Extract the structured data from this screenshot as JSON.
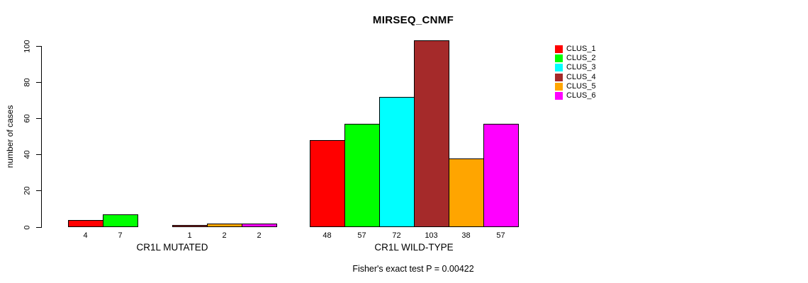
{
  "chart_data": {
    "type": "bar",
    "title": "MIRSEQ_CNMF",
    "ylabel": "number of cases",
    "ylim": [
      0,
      100
    ],
    "yticks": [
      0,
      20,
      40,
      60,
      80,
      100
    ],
    "grid": false,
    "legend_position": "top-right",
    "clusters": [
      {
        "name": "CLUS_1",
        "color": "#FF0000"
      },
      {
        "name": "CLUS_2",
        "color": "#00FF00"
      },
      {
        "name": "CLUS_3",
        "color": "#00FFFF"
      },
      {
        "name": "CLUS_4",
        "color": "#A52A2A"
      },
      {
        "name": "CLUS_5",
        "color": "#FFA500"
      },
      {
        "name": "CLUS_6",
        "color": "#FF00FF"
      }
    ],
    "groups": [
      {
        "label": "CR1L MUTATED",
        "values": [
          4,
          7,
          0,
          1,
          2,
          2
        ],
        "value_labels": [
          "4",
          "7",
          "",
          "1",
          "2",
          "2"
        ]
      },
      {
        "label": "CR1L WILD-TYPE",
        "values": [
          48,
          57,
          72,
          103,
          38,
          57
        ],
        "value_labels": [
          "48",
          "57",
          "72",
          "103",
          "38",
          "57"
        ]
      }
    ],
    "annotation": "Fisher's exact test P = 0.00422"
  }
}
